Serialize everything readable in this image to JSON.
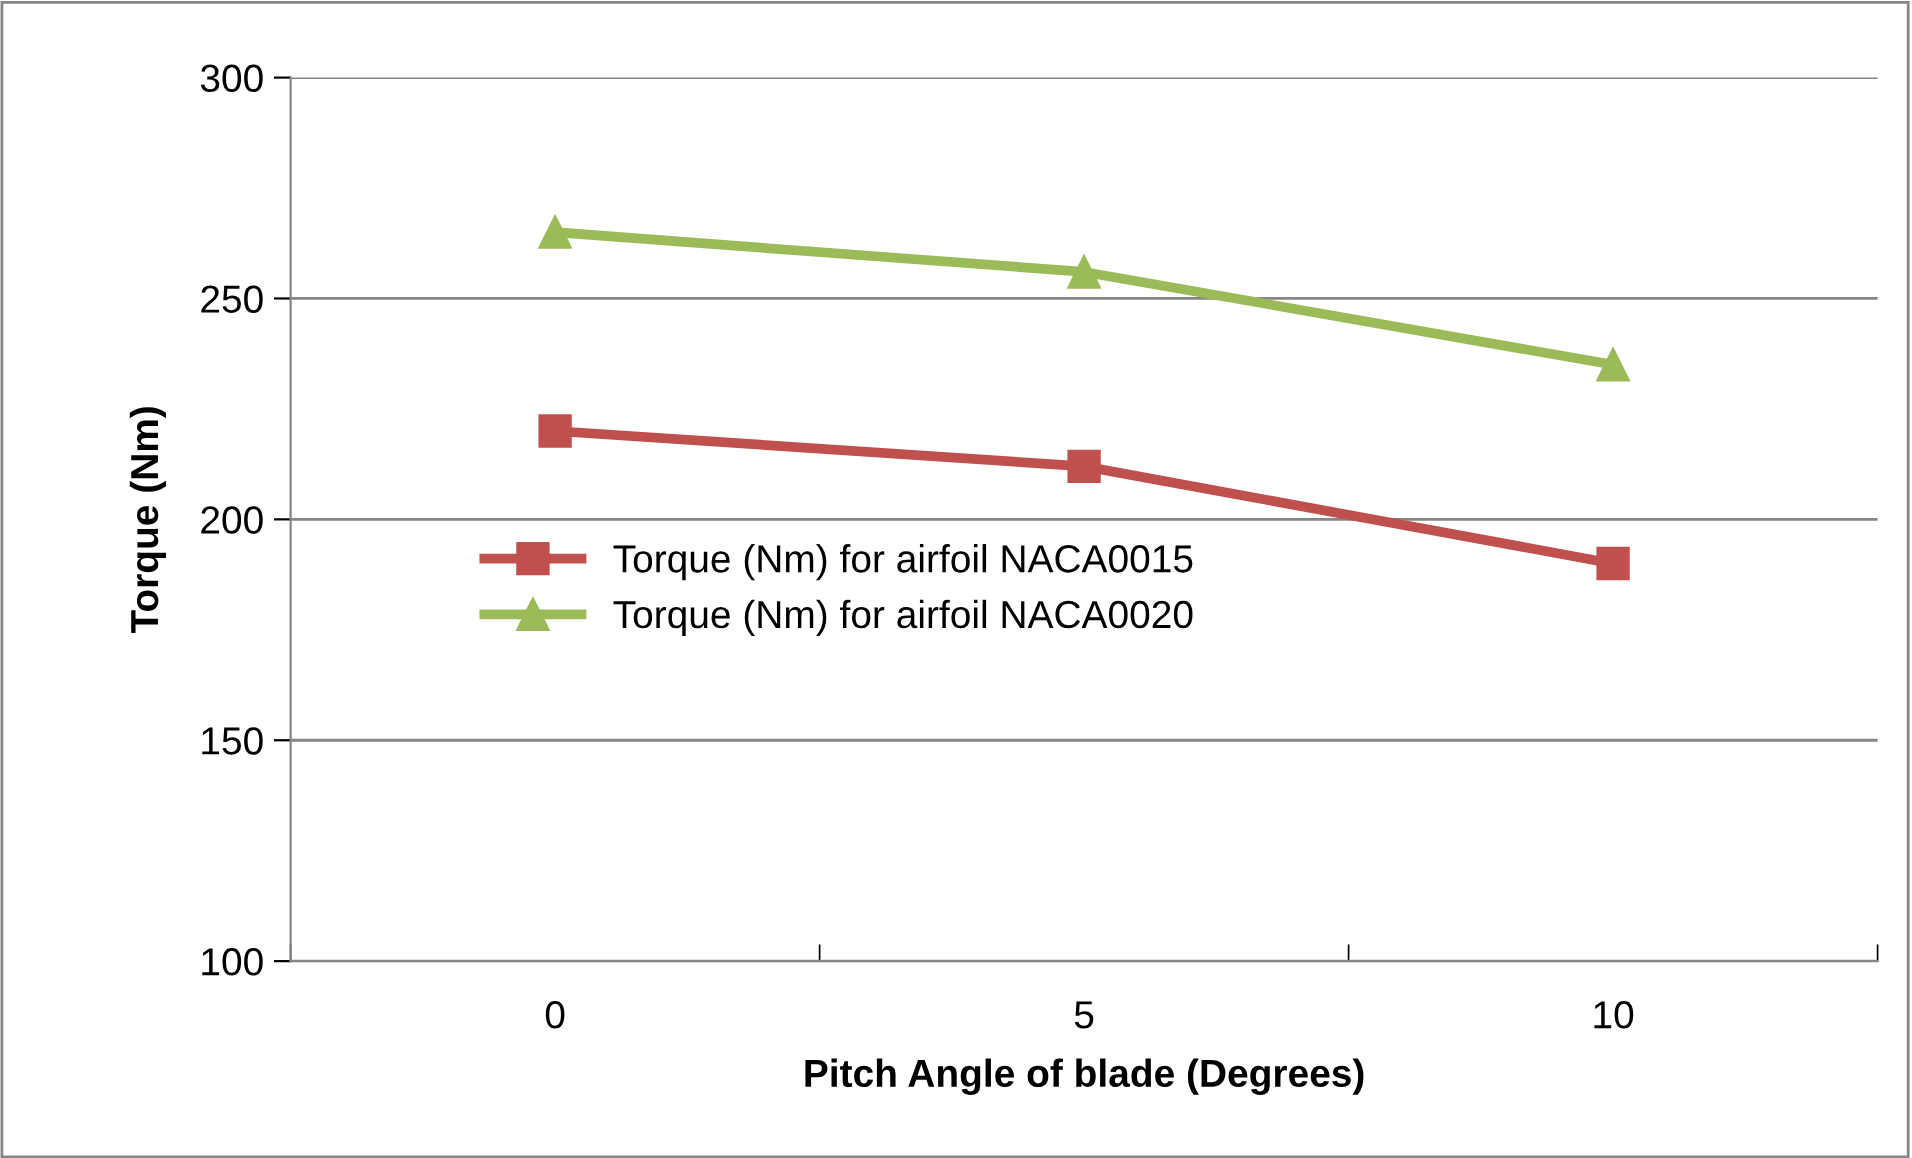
{
  "chart_data": {
    "type": "line",
    "xlabel": "Pitch Angle of blade (Degrees)",
    "ylabel": "Torque (Nm)",
    "categories": [
      "0",
      "5",
      "10"
    ],
    "series": [
      {
        "name": "Torque (Nm) for airfoil NACA0015",
        "color": "#c0504d",
        "marker": "square",
        "values": [
          220,
          212,
          190
        ]
      },
      {
        "name": "Torque (Nm) for airfoil NACA0020",
        "color": "#9bbb59",
        "marker": "triangle",
        "values": [
          265,
          256,
          235
        ]
      }
    ],
    "ylim": [
      100,
      300
    ],
    "yticks": [
      100,
      150,
      200,
      250,
      300
    ],
    "grid": "y",
    "legend": "left"
  }
}
